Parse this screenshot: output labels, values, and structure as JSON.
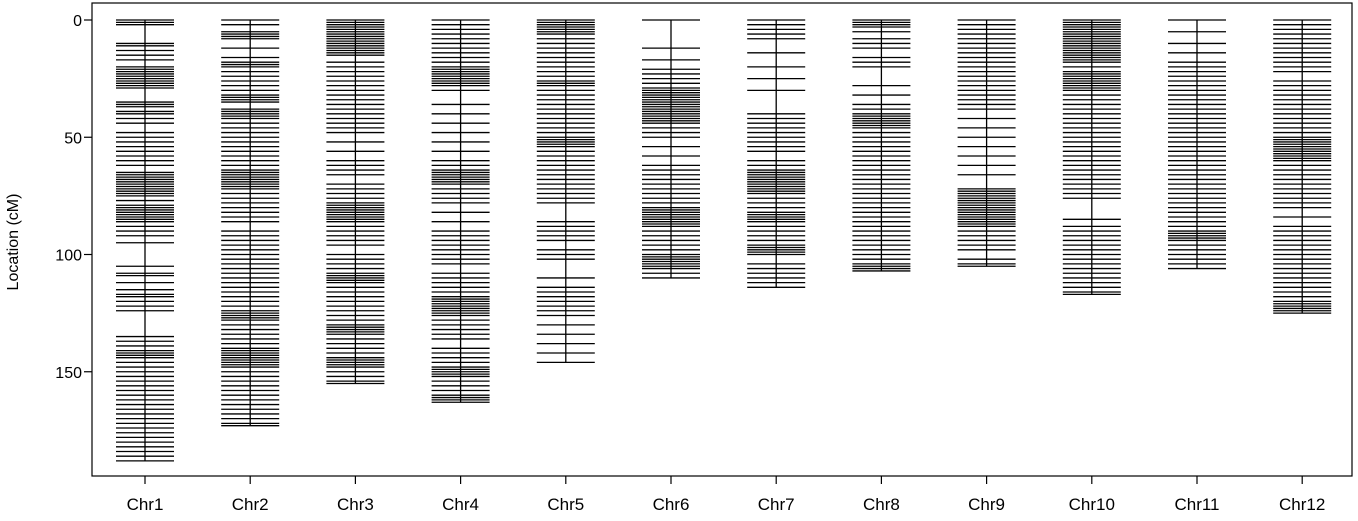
{
  "chart_data": {
    "type": "genetic-map",
    "ylabel": "Location (cM)",
    "ylim": [
      0,
      195
    ],
    "y_reversed": true,
    "y_ticks": [
      0,
      50,
      100,
      150
    ],
    "grid": false,
    "legend": "none",
    "colors": {
      "marker": "#000000",
      "axis": "#000000",
      "background": "#ffffff"
    },
    "chromosomes": [
      {
        "name": "Chr1",
        "length": 188,
        "markers": [
          0,
          1,
          2,
          10,
          11,
          13,
          15,
          17,
          20,
          21,
          22,
          23,
          24,
          25,
          26,
          27,
          28,
          29,
          35,
          36,
          37,
          39,
          40,
          42,
          44,
          48,
          50,
          52,
          54,
          56,
          58,
          60,
          62,
          65,
          66,
          67,
          68,
          69,
          70,
          71,
          72,
          73,
          74,
          75,
          77,
          79,
          80,
          81,
          82,
          83,
          84,
          85,
          86,
          88,
          90,
          92,
          95,
          105,
          108,
          109,
          112,
          115,
          117,
          118,
          120,
          122,
          124,
          135,
          137,
          139,
          141,
          142,
          143,
          144,
          146,
          148,
          150,
          152,
          154,
          156,
          158,
          160,
          162,
          164,
          166,
          168,
          170,
          172,
          174,
          176,
          178,
          180,
          182,
          184,
          186,
          188
        ]
      },
      {
        "name": "Chr2",
        "length": 173,
        "markers": [
          0,
          2,
          5,
          6,
          7,
          8,
          12,
          16,
          18,
          19,
          20,
          22,
          24,
          26,
          28,
          30,
          32,
          33,
          34,
          35,
          38,
          39,
          40,
          41,
          42,
          44,
          46,
          48,
          50,
          52,
          54,
          56,
          58,
          60,
          62,
          64,
          65,
          66,
          67,
          68,
          69,
          70,
          71,
          72,
          74,
          76,
          78,
          80,
          82,
          84,
          86,
          90,
          92,
          94,
          96,
          98,
          100,
          102,
          104,
          106,
          108,
          110,
          112,
          114,
          116,
          118,
          120,
          122,
          124,
          125,
          126,
          127,
          128,
          130,
          132,
          134,
          136,
          138,
          140,
          141,
          142,
          143,
          144,
          145,
          146,
          147,
          148,
          150,
          152,
          154,
          156,
          158,
          160,
          162,
          164,
          166,
          168,
          170,
          172,
          173
        ]
      },
      {
        "name": "Chr3",
        "length": 155,
        "markers": [
          0,
          1,
          2,
          3,
          4,
          5,
          6,
          7,
          8,
          9,
          10,
          11,
          12,
          13,
          14,
          15,
          18,
          20,
          22,
          24,
          26,
          28,
          30,
          32,
          34,
          36,
          38,
          40,
          42,
          44,
          46,
          48,
          52,
          56,
          60,
          62,
          64,
          66,
          70,
          72,
          74,
          76,
          78,
          79,
          80,
          81,
          82,
          83,
          84,
          85,
          86,
          88,
          90,
          92,
          94,
          96,
          100,
          102,
          104,
          106,
          108,
          109,
          110,
          111,
          112,
          114,
          116,
          118,
          120,
          122,
          124,
          126,
          128,
          130,
          131,
          132,
          133,
          134,
          136,
          138,
          140,
          142,
          144,
          145,
          146,
          147,
          148,
          150,
          152,
          154,
          155
        ]
      },
      {
        "name": "Chr4",
        "length": 163,
        "markers": [
          0,
          2,
          4,
          6,
          8,
          10,
          12,
          14,
          16,
          18,
          20,
          21,
          22,
          23,
          24,
          25,
          26,
          27,
          28,
          30,
          36,
          40,
          44,
          48,
          52,
          56,
          60,
          62,
          64,
          65,
          66,
          67,
          68,
          69,
          70,
          72,
          74,
          76,
          78,
          82,
          86,
          90,
          92,
          94,
          96,
          98,
          100,
          102,
          104,
          108,
          110,
          112,
          114,
          116,
          118,
          119,
          120,
          121,
          122,
          123,
          124,
          125,
          126,
          128,
          130,
          132,
          134,
          136,
          140,
          142,
          144,
          146,
          148,
          149,
          150,
          151,
          152,
          154,
          156,
          158,
          160,
          161,
          162,
          163
        ]
      },
      {
        "name": "Chr5",
        "length": 146,
        "markers": [
          0,
          1,
          2,
          3,
          4,
          5,
          6,
          8,
          10,
          12,
          14,
          16,
          18,
          20,
          22,
          24,
          26,
          27,
          28,
          30,
          32,
          34,
          36,
          38,
          40,
          42,
          44,
          46,
          48,
          50,
          51,
          52,
          53,
          54,
          56,
          58,
          60,
          62,
          64,
          66,
          68,
          70,
          72,
          74,
          76,
          78,
          86,
          88,
          90,
          92,
          94,
          98,
          100,
          102,
          110,
          114,
          116,
          118,
          120,
          122,
          124,
          126,
          130,
          134,
          138,
          142,
          146
        ]
      },
      {
        "name": "Chr6",
        "length": 110,
        "markers": [
          0,
          12,
          17,
          21,
          23,
          25,
          27,
          29,
          30,
          31,
          32,
          33,
          34,
          35,
          36,
          37,
          38,
          39,
          40,
          41,
          42,
          43,
          44,
          46,
          48,
          50,
          54,
          58,
          62,
          64,
          66,
          68,
          70,
          72,
          74,
          76,
          78,
          80,
          81,
          82,
          83,
          84,
          85,
          86,
          87,
          88,
          90,
          92,
          94,
          96,
          98,
          100,
          101,
          102,
          103,
          104,
          105,
          106,
          108,
          110
        ]
      },
      {
        "name": "Chr7",
        "length": 114,
        "markers": [
          0,
          2,
          4,
          6,
          8,
          14,
          20,
          25,
          30,
          40,
          42,
          44,
          46,
          48,
          50,
          52,
          54,
          56,
          60,
          62,
          64,
          65,
          66,
          67,
          68,
          69,
          70,
          71,
          72,
          73,
          74,
          76,
          78,
          80,
          82,
          83,
          84,
          85,
          86,
          88,
          90,
          92,
          94,
          96,
          97,
          98,
          99,
          100,
          104,
          106,
          108,
          110,
          112,
          114
        ]
      },
      {
        "name": "Chr8",
        "length": 107,
        "markers": [
          0,
          1,
          2,
          3,
          5,
          8,
          10,
          12,
          16,
          18,
          20,
          28,
          32,
          36,
          38,
          40,
          41,
          42,
          43,
          44,
          45,
          46,
          48,
          50,
          52,
          54,
          56,
          58,
          60,
          62,
          64,
          66,
          68,
          70,
          72,
          74,
          76,
          78,
          80,
          82,
          84,
          86,
          88,
          90,
          92,
          94,
          96,
          98,
          100,
          102,
          104,
          105,
          106,
          107
        ]
      },
      {
        "name": "Chr9",
        "length": 105,
        "markers": [
          0,
          2,
          4,
          6,
          8,
          10,
          12,
          14,
          16,
          18,
          20,
          22,
          24,
          26,
          28,
          30,
          32,
          34,
          36,
          38,
          42,
          46,
          50,
          54,
          58,
          62,
          66,
          72,
          73,
          74,
          75,
          76,
          77,
          78,
          79,
          80,
          81,
          82,
          83,
          84,
          85,
          86,
          87,
          88,
          90,
          92,
          94,
          96,
          98,
          102,
          104,
          105
        ]
      },
      {
        "name": "Chr10",
        "length": 117,
        "markers": [
          0,
          1,
          2,
          3,
          4,
          5,
          6,
          7,
          8,
          9,
          10,
          11,
          12,
          13,
          14,
          15,
          16,
          17,
          18,
          20,
          22,
          23,
          24,
          25,
          26,
          27,
          28,
          29,
          30,
          32,
          34,
          36,
          38,
          40,
          42,
          44,
          46,
          48,
          50,
          52,
          54,
          56,
          58,
          60,
          62,
          64,
          66,
          68,
          70,
          72,
          74,
          76,
          85,
          88,
          90,
          92,
          94,
          96,
          98,
          100,
          102,
          104,
          106,
          108,
          110,
          112,
          114,
          116,
          117
        ]
      },
      {
        "name": "Chr11",
        "length": 106,
        "markers": [
          0,
          5,
          10,
          14,
          18,
          20,
          22,
          24,
          26,
          28,
          30,
          32,
          34,
          36,
          38,
          40,
          42,
          44,
          46,
          48,
          50,
          52,
          54,
          56,
          58,
          60,
          62,
          64,
          66,
          68,
          70,
          72,
          74,
          76,
          78,
          80,
          82,
          84,
          86,
          88,
          90,
          91,
          92,
          93,
          94,
          96,
          98,
          100,
          102,
          104,
          106
        ]
      },
      {
        "name": "Chr12",
        "length": 125,
        "markers": [
          0,
          2,
          4,
          6,
          8,
          10,
          12,
          14,
          16,
          18,
          20,
          22,
          26,
          28,
          30,
          32,
          34,
          36,
          38,
          40,
          42,
          44,
          46,
          48,
          50,
          51,
          52,
          53,
          54,
          55,
          56,
          57,
          58,
          59,
          60,
          62,
          64,
          66,
          68,
          70,
          72,
          74,
          76,
          78,
          80,
          84,
          88,
          90,
          92,
          94,
          96,
          98,
          100,
          102,
          104,
          106,
          108,
          110,
          112,
          114,
          116,
          118,
          120,
          121,
          122,
          123,
          124,
          125
        ]
      }
    ]
  }
}
